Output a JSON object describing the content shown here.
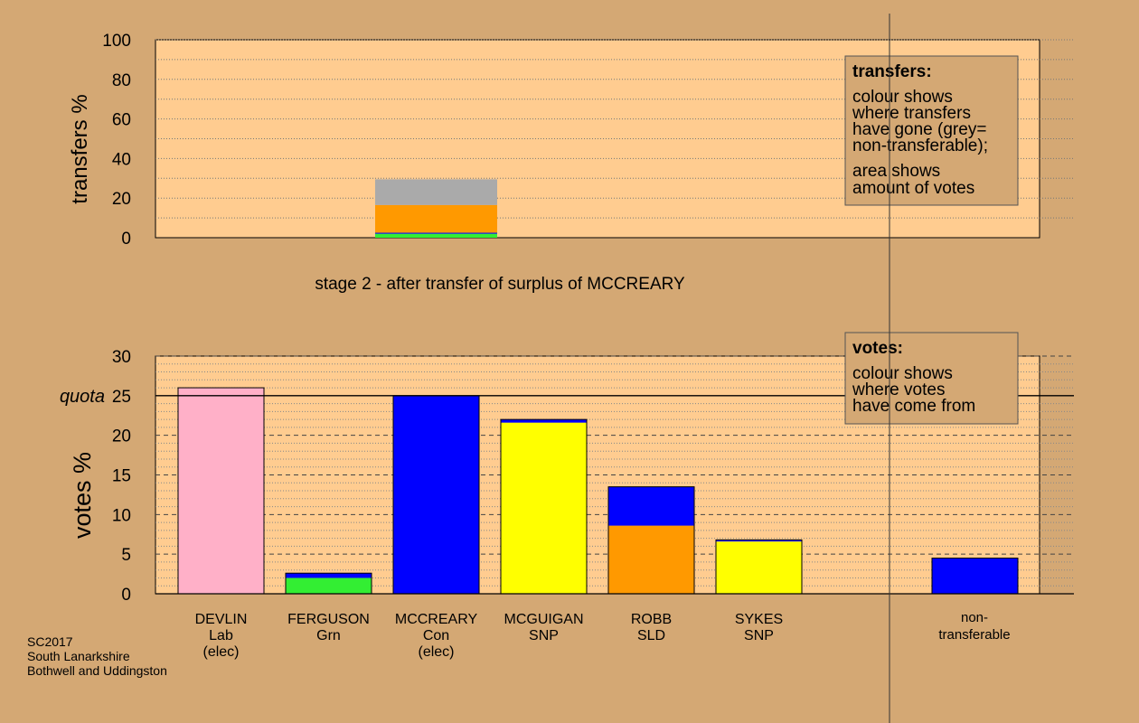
{
  "chart_data": [
    {
      "type": "bar",
      "stacked": true,
      "title": "stage 2 - after transfer of surplus of MCCREARY",
      "ylabel": "transfers %",
      "ylim": [
        0,
        100
      ],
      "yticks": [
        0,
        20,
        40,
        60,
        80,
        100
      ],
      "bar": {
        "position": "MCCREARY",
        "segments": [
          {
            "name": "Grn",
            "value": 2,
            "color": "#33ee33"
          },
          {
            "name": "Con",
            "value": 0.5,
            "color": "#0000ff"
          },
          {
            "name": "SLD",
            "value": 14,
            "color": "#ff9900"
          },
          {
            "name": "non-transferable",
            "value": 13,
            "color": "#aaaaaa"
          }
        ]
      },
      "legend": {
        "title": "transfers:",
        "lines_a": [
          "colour shows",
          "where transfers",
          "have gone (grey=",
          "non-transferable);"
        ],
        "lines_b": [
          "area shows",
          "amount of votes"
        ]
      }
    },
    {
      "type": "bar",
      "stacked": true,
      "ylabel": "votes %",
      "ylim": [
        0,
        30
      ],
      "yticks": [
        0,
        5,
        10,
        15,
        20,
        25,
        30
      ],
      "quota": 25,
      "quota_label": "quota",
      "categories": [
        {
          "name": "DEVLIN",
          "party": "Lab",
          "note": "(elec)",
          "segments": [
            {
              "value": 26.0,
              "color": "#ffb0c8"
            }
          ]
        },
        {
          "name": "FERGUSON",
          "party": "Grn",
          "note": "",
          "segments": [
            {
              "value": 2.0,
              "color": "#33ee33"
            },
            {
              "value": 0.6,
              "color": "#0000ff"
            }
          ]
        },
        {
          "name": "MCCREARY",
          "party": "Con",
          "note": "(elec)",
          "segments": [
            {
              "value": 25.0,
              "color": "#0000ff"
            }
          ]
        },
        {
          "name": "MCGUIGAN",
          "party": "SNP",
          "note": "",
          "segments": [
            {
              "value": 21.6,
              "color": "#ffff00"
            },
            {
              "value": 0.4,
              "color": "#0000ff"
            }
          ]
        },
        {
          "name": "ROBB",
          "party": "SLD",
          "note": "",
          "segments": [
            {
              "value": 8.6,
              "color": "#ff9900"
            },
            {
              "value": 4.9,
              "color": "#0000ff"
            }
          ]
        },
        {
          "name": "SYKES",
          "party": "SNP",
          "note": "",
          "segments": [
            {
              "value": 6.6,
              "color": "#ffff00"
            },
            {
              "value": 0.2,
              "color": "#0000ff"
            }
          ]
        }
      ],
      "nontransferable": {
        "label_lines": [
          "non-",
          "transferable"
        ],
        "value": 4.5,
        "color": "#0000ff"
      },
      "legend": {
        "title": "votes:",
        "lines": [
          "colour shows",
          "where votes",
          "have come from"
        ]
      }
    }
  ],
  "footer": {
    "line1": "SC2017",
    "line2": "South Lanarkshire",
    "line3": "Bothwell and Uddingston"
  }
}
